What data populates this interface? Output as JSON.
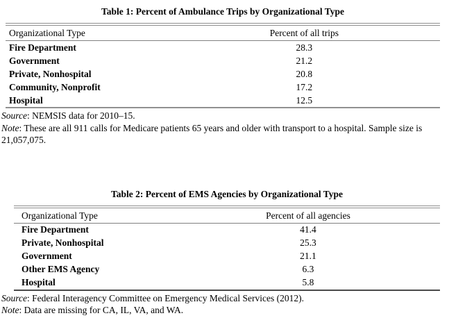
{
  "tables": [
    {
      "title": "Table 1: Percent of Ambulance Trips by Organizational Type",
      "columns": [
        "Organizational Type",
        "Percent of all trips"
      ],
      "rows": [
        {
          "type": "Fire Department",
          "value": "28.3"
        },
        {
          "type": "Government",
          "value": "21.2"
        },
        {
          "type": "Private, Nonhospital",
          "value": "20.8"
        },
        {
          "type": "Community, Nonprofit",
          "value": "17.2"
        },
        {
          "type": "Hospital",
          "value": "12.5"
        }
      ],
      "source_label": "Source",
      "source_text": ": NEMSIS data for 2010–15.",
      "note_label": "Note",
      "note_text": ": These are all 911 calls for Medicare patients 65 years and older with transport to a hospital. Sample size is 21,057,075."
    },
    {
      "title": "Table 2: Percent of EMS Agencies by Organizational Type",
      "columns": [
        "Organizational Type",
        "Percent of all agencies"
      ],
      "rows": [
        {
          "type": "Fire Department",
          "value": "41.4"
        },
        {
          "type": "Private, Nonhospital",
          "value": "25.3"
        },
        {
          "type": "Government",
          "value": "21.1"
        },
        {
          "type": "Other EMS Agency",
          "value": "6.3"
        },
        {
          "type": "Hospital",
          "value": "5.8"
        }
      ],
      "source_label": "Source",
      "source_text": ": Federal Interagency Committee on Emergency Medical Services (2012).",
      "note_label": "Note",
      "note_text": ": Data are missing for CA, IL, VA, and WA."
    }
  ],
  "colors": {
    "rule_double_top": "#8c8c8c",
    "rule_header": "#808080",
    "rule_bottom_table1": "#909090",
    "rule_bottom_table2": "#4a4a4a",
    "text": "#000000",
    "background": "#ffffff"
  }
}
